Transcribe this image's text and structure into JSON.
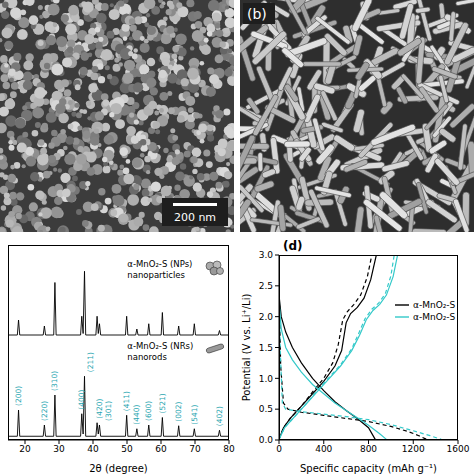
{
  "images": [
    {
      "scale_bar": "200 nm"
    },
    {
      "label": "(b)"
    }
  ],
  "chart_data": [
    {
      "type": "line",
      "xlabel": "2θ (degree)",
      "xlim": [
        15,
        80
      ],
      "xticks": [
        20,
        30,
        40,
        50,
        60,
        70,
        80
      ],
      "ylim": [
        0,
        260
      ],
      "tick_labels": "x",
      "x": [
        15,
        17.75,
        18.1,
        18.45,
        25.35,
        25.7,
        26.05,
        28.45,
        28.8,
        29.15,
        36.35,
        36.7,
        37.1,
        37.5,
        37.85,
        40.85,
        41.2,
        41.55,
        41.9,
        42.25,
        49.55,
        49.9,
        50.25,
        52.55,
        52.9,
        53.25,
        56.05,
        56.4,
        56.75,
        60.05,
        60.4,
        60.75,
        64.85,
        65.2,
        65.55,
        69.45,
        69.8,
        70.15,
        76.85,
        77.2,
        77.55,
        80
      ],
      "series": [
        {
          "name": "α-MnO₂-S (NPs)",
          "description": "nanoparticles",
          "color": "#000000",
          "values": [
            140,
            140,
            160,
            140,
            140,
            152,
            140,
            140,
            210,
            140,
            140,
            165,
            142,
            225,
            140,
            140,
            165,
            142,
            155,
            140,
            140,
            165,
            140,
            140,
            148,
            140,
            140,
            155,
            140,
            140,
            170,
            140,
            140,
            152,
            140,
            140,
            155,
            140,
            140,
            146,
            140,
            140
          ]
        },
        {
          "name": "α-MnO₂-S (NRs)",
          "description": "nanorods",
          "color": "#000000",
          "values": [
            5,
            5,
            40,
            5,
            5,
            20,
            5,
            5,
            60,
            5,
            5,
            35,
            8,
            85,
            5,
            5,
            23,
            8,
            20,
            5,
            5,
            33,
            5,
            5,
            15,
            5,
            5,
            20,
            5,
            5,
            30,
            5,
            5,
            19,
            5,
            5,
            15,
            5,
            5,
            13,
            5,
            5
          ],
          "peak_labels": {
            "x": [
              18.1,
              25.7,
              28.8,
              36.7,
              37.5,
              41.2,
              41.9,
              49.9,
              52.9,
              56.4,
              60.4,
              65.2,
              69.8,
              77.2
            ],
            "labels": [
              "(200)",
              "(220)",
              "(310)",
              "(400)",
              "(211)",
              "(420)",
              "(301)",
              "(411)",
              "(440)",
              "(600)",
              "(521)",
              "(002)",
              "(541)",
              "(402)"
            ],
            "color": "#1fa5b0"
          }
        }
      ]
    },
    {
      "type": "line",
      "label": "(d)",
      "xlabel": "Specific capacity (mAh g⁻¹)",
      "ylabel": "Potential (V vs. Li⁺/Li)",
      "xlim": [
        0,
        1600
      ],
      "xticks": [
        0,
        400,
        800,
        1200,
        1600
      ],
      "ylim": [
        0,
        3
      ],
      "yticks": [
        {
          "value": 0,
          "label": "0.0"
        },
        {
          "value": 0.5,
          "label": "0.5"
        },
        {
          "value": 1,
          "label": "1.0"
        },
        {
          "value": 1.5,
          "label": "1.5"
        },
        {
          "value": 2,
          "label": "2.0"
        },
        {
          "value": 2.5,
          "label": "2.5"
        },
        {
          "value": 3,
          "label": "3.0"
        }
      ],
      "legend": "right",
      "series": [
        {
          "name": "α-MnO₂-S",
          "color": "#000000",
          "curves": [
            {
              "line_style": "solid",
              "x": [
                0,
                20,
                60,
                120,
                200,
                300,
                400,
                500,
                600,
                700,
                800,
                860
              ],
              "values": [
                2.35,
                2.0,
                1.75,
                1.5,
                1.25,
                1.0,
                0.8,
                0.62,
                0.48,
                0.35,
                0.2,
                0.01
              ]
            },
            {
              "line_style": "dashed",
              "x": [
                0,
                15,
                40,
                80,
                200,
                400,
                600,
                800,
                1000,
                1150,
                1250,
                1320
              ],
              "values": [
                2.55,
                1.2,
                0.6,
                0.5,
                0.45,
                0.4,
                0.35,
                0.3,
                0.22,
                0.14,
                0.07,
                0.01
              ]
            },
            {
              "line_style": "solid",
              "x": [
                0,
                40,
                100,
                200,
                300,
                400,
                500,
                560,
                600,
                640,
                700,
                760,
                820,
                870
              ],
              "values": [
                0.01,
                0.2,
                0.35,
                0.55,
                0.75,
                0.95,
                1.2,
                1.45,
                1.9,
                2.05,
                2.15,
                2.3,
                2.6,
                3.0
              ]
            },
            {
              "line_style": "dashed",
              "x": [
                0,
                40,
                100,
                200,
                300,
                400,
                480,
                530,
                570,
                610,
                670,
                730,
                790,
                830
              ],
              "values": [
                0.01,
                0.2,
                0.35,
                0.55,
                0.78,
                1.0,
                1.25,
                1.55,
                1.95,
                2.08,
                2.2,
                2.35,
                2.65,
                3.0
              ]
            }
          ]
        },
        {
          "name": "α-MnO₂-S",
          "color": "#33c9c9",
          "curves": [
            {
              "line_style": "solid",
              "x": [
                0,
                20,
                60,
                120,
                200,
                300,
                400,
                500,
                600,
                700,
                800,
                900,
                960
              ],
              "values": [
                2.25,
                1.8,
                1.5,
                1.3,
                1.1,
                0.9,
                0.75,
                0.6,
                0.48,
                0.36,
                0.24,
                0.1,
                0.01
              ]
            },
            {
              "line_style": "dashed",
              "x": [
                0,
                10,
                30,
                60,
                200,
                400,
                600,
                800,
                1000,
                1200,
                1350,
                1450
              ],
              "values": [
                2.7,
                1.5,
                0.6,
                0.5,
                0.46,
                0.42,
                0.38,
                0.33,
                0.25,
                0.15,
                0.07,
                0.01
              ]
            },
            {
              "line_style": "solid",
              "x": [
                0,
                50,
                150,
                250,
                350,
                450,
                550,
                650,
                720,
                780,
                840,
                900,
                960,
                1020,
                1060
              ],
              "values": [
                0.01,
                0.2,
                0.4,
                0.6,
                0.8,
                1.0,
                1.2,
                1.45,
                1.7,
                1.95,
                2.1,
                2.2,
                2.35,
                2.65,
                3.0
              ]
            },
            {
              "line_style": "dashed",
              "x": [
                0,
                50,
                150,
                250,
                350,
                450,
                550,
                650,
                710,
                770,
                830,
                890,
                950,
                1000,
                1030
              ],
              "values": [
                0.01,
                0.2,
                0.4,
                0.6,
                0.82,
                1.02,
                1.22,
                1.48,
                1.72,
                1.97,
                2.12,
                2.22,
                2.37,
                2.66,
                3.0
              ]
            }
          ]
        }
      ]
    }
  ]
}
